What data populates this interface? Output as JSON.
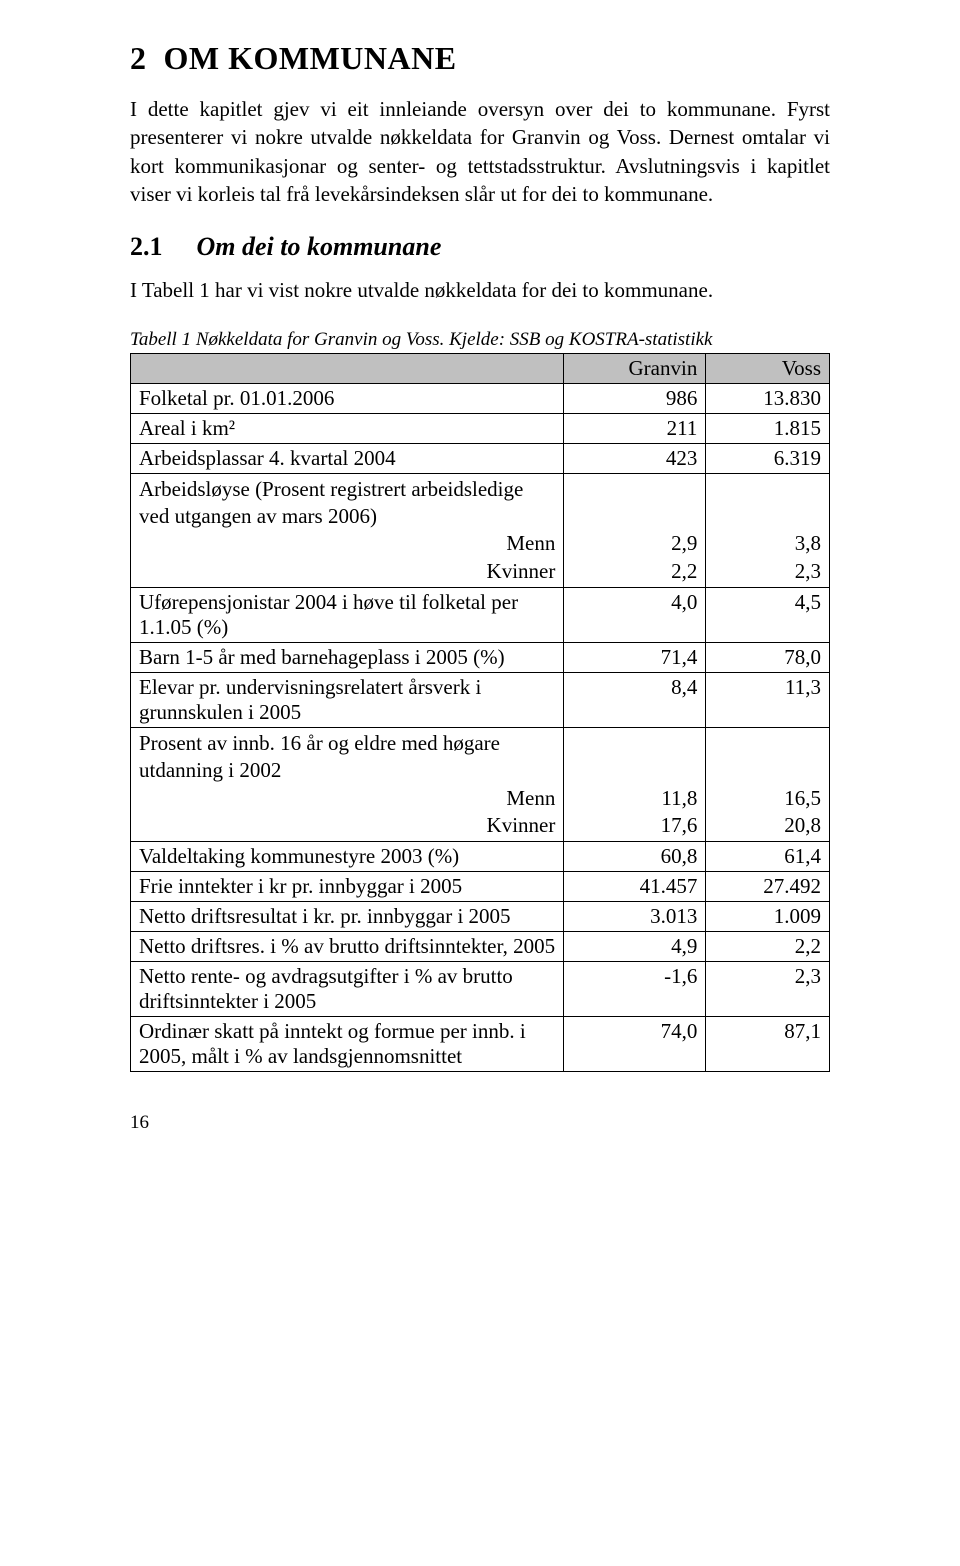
{
  "section": {
    "number": "2",
    "title": "OM KOMMUNANE",
    "intro_para": "I dette kapitlet gjev vi eit innleiande oversyn over dei to kommunane. Fyrst presenterer vi nokre utvalde nøkkeldata for Granvin og Voss. Dernest omtalar vi kort kommunikasjonar og senter- og tettstadsstruktur. Avslutningsvis i kapitlet viser vi korleis tal frå levekårsindeksen slår ut for dei to kommunane."
  },
  "subsection": {
    "number": "2.1",
    "title": "Om dei to kommunane",
    "para": "I Tabell 1 har vi vist nokre utvalde nøkkeldata for dei to kommunane."
  },
  "table": {
    "caption": "Tabell 1 Nøkkeldata for Granvin og Voss. Kjelde: SSB og KOSTRA-statistikk",
    "header_blank": "",
    "col1": "Granvin",
    "col2": "Voss",
    "header_bg": "#c0c0c0",
    "border_color": "#000000",
    "rows": [
      {
        "label": "Folketal pr. 01.01.2006",
        "c1": "986",
        "c2": "13.830"
      },
      {
        "label": "Areal i km²",
        "c1": "211",
        "c2": "1.815"
      },
      {
        "label": "Arbeidsplassar 4. kvartal 2004",
        "c1": "423",
        "c2": "6.319"
      },
      {
        "label": "Arbeidsløyse (Prosent registrert arbeidsledige ved utgangen av mars 2006)",
        "sub1": "Menn",
        "sub2": "Kvinner",
        "c1a": "2,9",
        "c2a": "3,8",
        "c1b": "2,2",
        "c2b": "2,3",
        "multi": true
      },
      {
        "label": "Uførepensjonistar 2004 i høve til folketal per 1.1.05 (%)",
        "c1": "4,0",
        "c2": "4,5"
      },
      {
        "label": "Barn 1-5 år med barnehageplass i 2005 (%)",
        "c1": "71,4",
        "c2": "78,0"
      },
      {
        "label": "Elevar pr. undervisningsrelatert årsverk i grunnskulen i 2005",
        "c1": "8,4",
        "c2": "11,3"
      },
      {
        "label": "Prosent av innb. 16 år og eldre med høgare utdanning i 2002",
        "sub1": "Menn",
        "sub2": "Kvinner",
        "c1a": "11,8",
        "c2a": "16,5",
        "c1b": "17,6",
        "c2b": "20,8",
        "multi": true
      },
      {
        "label": "Valdeltaking kommunestyre 2003 (%)",
        "c1": "60,8",
        "c2": "61,4"
      },
      {
        "label": "Frie inntekter i kr pr. innbyggar i 2005",
        "c1": "41.457",
        "c2": "27.492"
      },
      {
        "label": "Netto driftsresultat i kr. pr. innbyggar i 2005",
        "c1": "3.013",
        "c2": "1.009"
      },
      {
        "label": "Netto driftsres. i % av brutto driftsinntekter, 2005",
        "c1": "4,9",
        "c2": "2,2"
      },
      {
        "label": "Netto rente- og avdragsutgifter i % av brutto driftsinntekter i 2005",
        "c1": "-1,6",
        "c2": "2,3"
      },
      {
        "label": "Ordinær skatt på inntekt og formue per innb. i 2005, målt i % av landsgjennomsnittet",
        "c1": "74,0",
        "c2": "87,1"
      }
    ]
  },
  "page_number": "16",
  "colors": {
    "background": "#ffffff",
    "text": "#000000"
  },
  "typography": {
    "body_font": "Times New Roman",
    "heading_size_pt": 24,
    "subheading_size_pt": 20,
    "body_size_pt": 16,
    "caption_size_pt": 14
  }
}
